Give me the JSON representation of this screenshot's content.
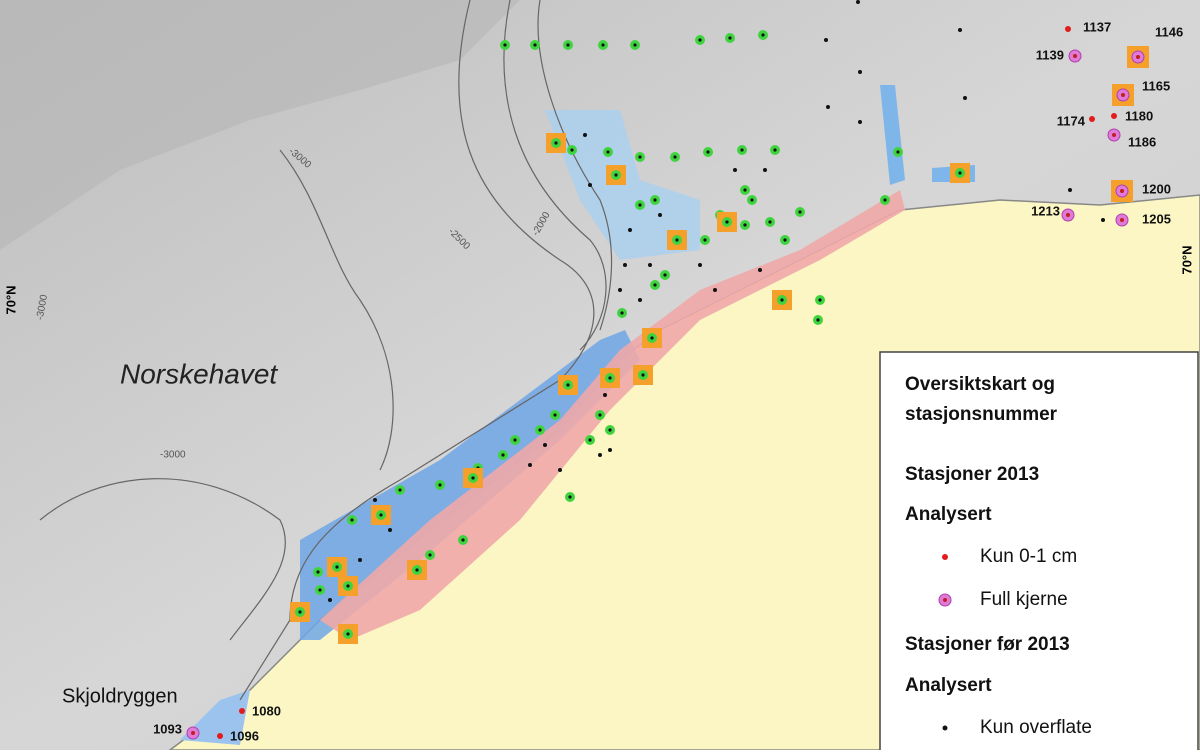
{
  "map": {
    "sea_label": "Norskehavet",
    "ridge_label": "Skjoldryggen",
    "latitude_labels": [
      "70°N",
      "70°N"
    ],
    "contour_labels": [
      "-3000",
      "-2500",
      "-2000",
      "-3000",
      "-3000"
    ]
  },
  "stations": [
    "1137",
    "1146",
    "1139",
    "1165",
    "1174",
    "1180",
    "1186",
    "1200",
    "1213",
    "1205",
    "1093",
    "1080",
    "1096"
  ],
  "legend": {
    "title": [
      "Oversiktskart og",
      "stasjonsnummer"
    ],
    "section_2013": "Stasjoner 2013",
    "analysed_2013": "Analysert",
    "items_2013": [
      "Kun 0-1 cm",
      "Full kjerne"
    ],
    "section_before": "Stasjoner før 2013",
    "analysed_before": "Analysert",
    "items_before": [
      "Kun overflate"
    ]
  }
}
